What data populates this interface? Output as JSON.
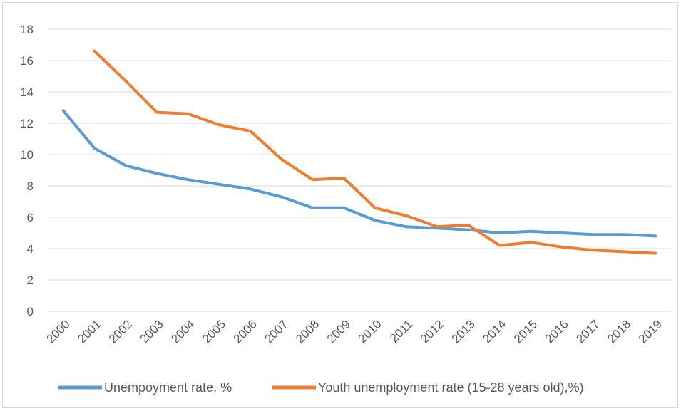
{
  "chart_data": {
    "type": "line",
    "categories": [
      "2000",
      "2001",
      "2002",
      "2003",
      "2004",
      "2005",
      "2006",
      "2007",
      "2008",
      "2009",
      "2010",
      "2011",
      "2012",
      "2013",
      "2014",
      "2015",
      "2016",
      "2017",
      "2018",
      "2019"
    ],
    "series": [
      {
        "name": "Unempoyment rate, %",
        "color": "#5b9bd5",
        "values": [
          12.8,
          10.4,
          9.3,
          8.8,
          8.4,
          8.1,
          7.8,
          7.3,
          6.6,
          6.6,
          5.8,
          5.4,
          5.3,
          5.2,
          5.0,
          5.1,
          5.0,
          4.9,
          4.9,
          4.8
        ]
      },
      {
        "name": "Youth unemployment rate (15-28 years old),%)",
        "color": "#ed7d31",
        "values": [
          null,
          16.6,
          14.7,
          12.7,
          12.6,
          11.9,
          11.5,
          9.7,
          8.4,
          8.5,
          6.6,
          6.1,
          5.4,
          5.5,
          4.2,
          4.4,
          4.1,
          3.9,
          3.8,
          3.7
        ]
      }
    ],
    "ylim": [
      0,
      18
    ],
    "yticks": [
      "0",
      "2",
      "4",
      "6",
      "8",
      "10",
      "12",
      "14",
      "16",
      "18"
    ],
    "grid": true,
    "legend_position": "bottom"
  }
}
